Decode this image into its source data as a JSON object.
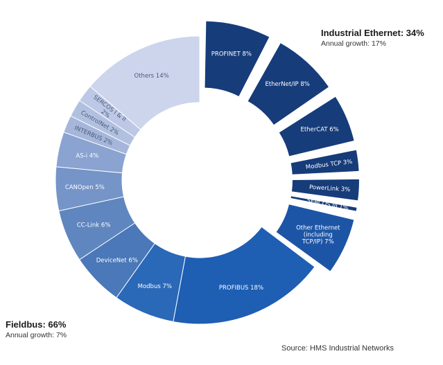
{
  "chart_data": {
    "type": "donut",
    "groups": [
      {
        "name": "Industrial Ethernet",
        "total_label": "Industrial Ethernet: 34%",
        "growth_label": "Annual growth: 17%",
        "exploded": true
      },
      {
        "name": "Fieldbus",
        "total_label": "Fieldbus: 66%",
        "growth_label": "Annual growth: 7%",
        "exploded": false
      }
    ],
    "segments": [
      {
        "label": "PROFINET 8%",
        "value": 8,
        "group": "Industrial Ethernet",
        "color": "#163c7a"
      },
      {
        "label": "EtherNet/IP 8%",
        "value": 8,
        "group": "Industrial Ethernet",
        "color": "#163c7a"
      },
      {
        "label": "EtherCAT 6%",
        "value": 6,
        "group": "Industrial Ethernet",
        "color": "#163c7a"
      },
      {
        "label": "Modbus TCP 3%",
        "value": 3,
        "group": "Industrial Ethernet",
        "color": "#163c7a"
      },
      {
        "label": "PowerLink 3%",
        "value": 3,
        "group": "Industrial Ethernet",
        "color": "#163c7a"
      },
      {
        "label": "SERCOS III 1%",
        "value": 1,
        "group": "Industrial Ethernet",
        "color": "#163c7a"
      },
      {
        "label": "Other Ethernet (including TCP/IP) 7%",
        "value": 7,
        "group": "Industrial Ethernet",
        "color": "#1d55a6"
      },
      {
        "label": "PROFIBUS 18%",
        "value": 18,
        "group": "Fieldbus",
        "color": "#1e5eb3"
      },
      {
        "label": "Modbus 7%",
        "value": 7,
        "group": "Fieldbus",
        "color": "#2a68b8"
      },
      {
        "label": "DeviceNet 6%",
        "value": 6,
        "group": "Fieldbus",
        "color": "#4a78b8"
      },
      {
        "label": "CC-Link 6%",
        "value": 6,
        "group": "Fieldbus",
        "color": "#5f86bf"
      },
      {
        "label": "CANOpen 5%",
        "value": 5,
        "group": "Fieldbus",
        "color": "#7594c8"
      },
      {
        "label": "AS-i 4%",
        "value": 4,
        "group": "Fieldbus",
        "color": "#8aa3d1"
      },
      {
        "label": "INTERBUS 2%",
        "value": 2,
        "group": "Fieldbus",
        "color": "#a5b6da"
      },
      {
        "label": "ControlNet 2%",
        "value": 2,
        "group": "Fieldbus",
        "color": "#b2c0e0"
      },
      {
        "label": "SERCOS I & II 2%",
        "value": 2,
        "group": "Fieldbus",
        "color": "#bcc8e5"
      },
      {
        "label": "Others 14%",
        "value": 14,
        "group": "Fieldbus",
        "color": "#ccd5ec"
      }
    ]
  },
  "annotations": {
    "source": "Source: HMS Industrial Networks"
  }
}
